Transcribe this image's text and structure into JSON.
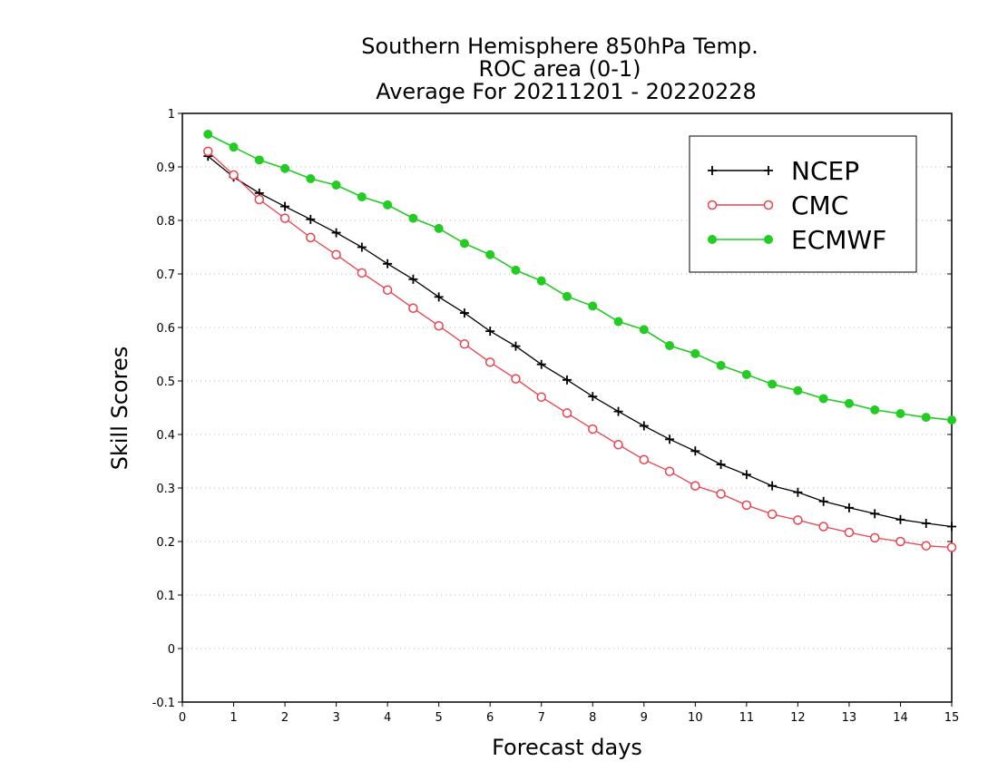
{
  "chart_data": {
    "type": "line",
    "title_lines": [
      "Southern Hemisphere 850hPa Temp.",
      "ROC area (0-1)",
      "Average For 20211201 - 20220228"
    ],
    "xlabel": "Forecast days",
    "ylabel": "Skill Scores",
    "xlim": [
      0,
      15
    ],
    "ylim": [
      -0.1,
      1
    ],
    "xticks": [
      "0",
      "1",
      "2",
      "3",
      "4",
      "5",
      "6",
      "7",
      "8",
      "9",
      "10",
      "11",
      "12",
      "13",
      "14",
      "15"
    ],
    "yticks": [
      "-0.1",
      "0",
      "0.1",
      "0.2",
      "0.3",
      "0.4",
      "0.5",
      "0.6",
      "0.7",
      "0.8",
      "0.9",
      "1"
    ],
    "grid": "horizontal dotted",
    "legend_position": "top-right",
    "x": [
      0.5,
      1,
      1.5,
      2,
      2.5,
      3,
      3.5,
      4,
      4.5,
      5,
      5.5,
      6,
      6.5,
      7,
      7.5,
      8,
      8.5,
      9,
      9.5,
      10,
      10.5,
      11,
      11.5,
      12,
      12.5,
      13,
      13.5,
      14,
      14.5,
      15
    ],
    "series": [
      {
        "name": "NCEP",
        "color": "#000000",
        "marker": "plus",
        "values": [
          0.92,
          0.881,
          0.851,
          0.826,
          0.802,
          0.777,
          0.75,
          0.719,
          0.69,
          0.657,
          0.627,
          0.593,
          0.565,
          0.531,
          0.502,
          0.471,
          0.443,
          0.416,
          0.391,
          0.369,
          0.344,
          0.325,
          0.304,
          0.292,
          0.275,
          0.263,
          0.252,
          0.241,
          0.234,
          0.228
        ]
      },
      {
        "name": "CMC",
        "color": "#e8434f",
        "marker": "open-circle",
        "values": [
          0.929,
          0.885,
          0.839,
          0.804,
          0.768,
          0.736,
          0.702,
          0.67,
          0.636,
          0.603,
          0.569,
          0.535,
          0.504,
          0.47,
          0.44,
          0.41,
          0.381,
          0.353,
          0.331,
          0.304,
          0.289,
          0.268,
          0.251,
          0.24,
          0.228,
          0.217,
          0.207,
          0.2,
          0.192,
          0.189
        ]
      },
      {
        "name": "ECMWF",
        "color": "#22cc22",
        "marker": "filled-circle",
        "values": [
          0.961,
          0.937,
          0.913,
          0.897,
          0.878,
          0.866,
          0.844,
          0.829,
          0.804,
          0.785,
          0.757,
          0.736,
          0.707,
          0.687,
          0.658,
          0.64,
          0.611,
          0.596,
          0.566,
          0.551,
          0.529,
          0.512,
          0.494,
          0.482,
          0.467,
          0.458,
          0.446,
          0.439,
          0.432,
          0.427
        ]
      }
    ]
  }
}
